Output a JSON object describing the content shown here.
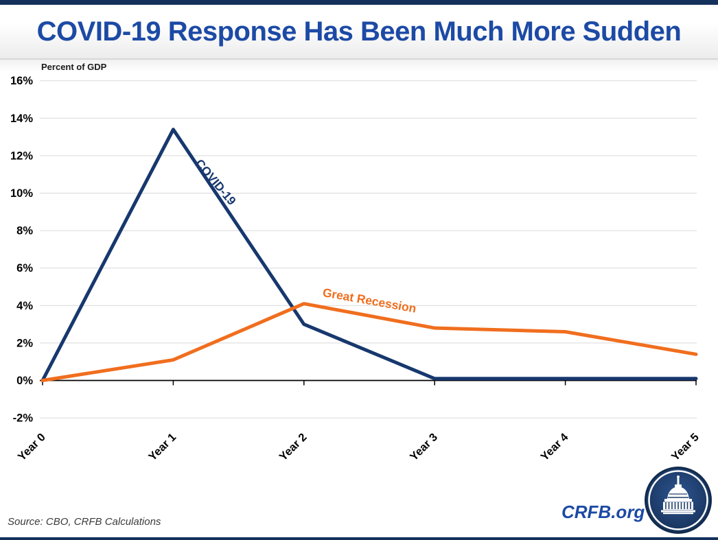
{
  "page": {
    "title": "COVID-19 Response Has Been Much More Sudden",
    "source_note": "Source: CBO, CRFB Calculations",
    "site_label": "CRFB.org",
    "logo_icon": "capitol-building-logo"
  },
  "colors": {
    "accent_bar": "#14315C",
    "title_blue": "#1C4AA5",
    "covid_line": "#17386E",
    "recession_line": "#F06E1E",
    "gridline": "#D9D9D9",
    "axis": "#000000",
    "source_text": "#3A3A3A"
  },
  "chart_data": {
    "type": "line",
    "title": "COVID-19 Response Has Been Much More Sudden",
    "axis_title": "Percent of GDP",
    "xlabel": "",
    "ylabel": "Percent of GDP",
    "categories": [
      "Year 0",
      "Year 1",
      "Year 2",
      "Year 3",
      "Year 4",
      "Year 5"
    ],
    "y_tick_labels": [
      "16%",
      "14%",
      "12%",
      "10%",
      "8%",
      "6%",
      "4%",
      "2%",
      "0%",
      "-2%"
    ],
    "y_tick_values": [
      16,
      14,
      12,
      10,
      8,
      6,
      4,
      2,
      0,
      -2
    ],
    "ylim": [
      -2,
      16
    ],
    "grid": true,
    "legend_position": "inline-labels-on-lines",
    "series": [
      {
        "name": "COVID-19",
        "color": "#17386E",
        "values": [
          0,
          13.4,
          3.0,
          0.1,
          0.1,
          0.1
        ]
      },
      {
        "name": "Great Recession",
        "color": "#F06E1E",
        "values": [
          0,
          1.1,
          4.1,
          2.8,
          2.6,
          1.4
        ]
      }
    ]
  }
}
